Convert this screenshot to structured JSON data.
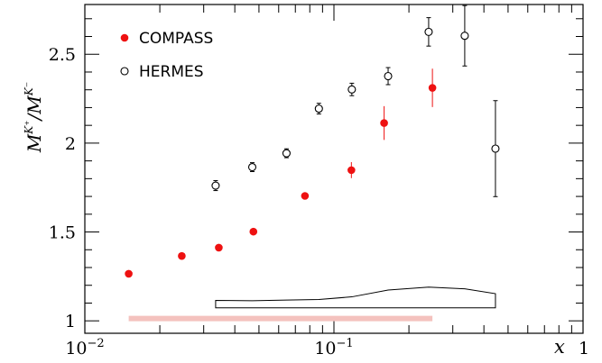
{
  "chart_data": {
    "type": "scatter",
    "x_scale": "log",
    "xlim": [
      0.01,
      1
    ],
    "ylim": [
      0.93,
      2.78
    ],
    "xlabel": "x",
    "ylabel": {
      "main": "M",
      "sup_plus": "K⁺",
      "slash": "/",
      "sup_minus": "K⁻"
    },
    "x_ticks": [
      {
        "value": 0.01,
        "base": "10",
        "exp": "−2"
      },
      {
        "value": 0.1,
        "base": "10",
        "exp": "−1"
      },
      {
        "value": 1,
        "base": "1",
        "exp": ""
      }
    ],
    "y_ticks": [
      {
        "value": 1,
        "label": "1"
      },
      {
        "value": 1.5,
        "label": "1.5"
      },
      {
        "value": 2,
        "label": "2"
      },
      {
        "value": 2.5,
        "label": "2.5"
      }
    ],
    "legend": {
      "position": "top-left"
    },
    "series": [
      {
        "name": "COMPASS",
        "marker": "filled-circle",
        "color": "#ee1111",
        "x": [
          0.015,
          0.0245,
          0.0345,
          0.0475,
          0.0765,
          0.1175,
          0.159,
          0.2485
        ],
        "y": [
          1.265,
          1.365,
          1.412,
          1.502,
          1.703,
          1.848,
          2.113,
          2.311
        ],
        "err": [
          0.012,
          0.012,
          0.012,
          0.014,
          0.018,
          0.045,
          0.095,
          0.108
        ]
      },
      {
        "name": "HERMES",
        "marker": "open-circle",
        "color": "#000000",
        "x": [
          0.0335,
          0.047,
          0.0645,
          0.087,
          0.118,
          0.165,
          0.24,
          0.335,
          0.445
        ],
        "y": [
          1.761,
          1.865,
          1.943,
          2.194,
          2.302,
          2.377,
          2.626,
          2.604,
          1.969
        ],
        "err": [
          0.028,
          0.025,
          0.025,
          0.03,
          0.035,
          0.048,
          0.08,
          0.17,
          0.27
        ]
      }
    ],
    "systematic_bands": [
      {
        "for": "COMPASS",
        "type": "bar",
        "color": "#f4c2be",
        "x_range": [
          0.015,
          0.2485
        ],
        "y": 1.013
      },
      {
        "for": "HERMES",
        "type": "outline",
        "color": "#000000",
        "x_range": [
          0.0335,
          0.445
        ],
        "y_bottom": 1.073,
        "top": [
          [
            0.0335,
            1.115
          ],
          [
            0.047,
            1.113
          ],
          [
            0.0645,
            1.117
          ],
          [
            0.087,
            1.12
          ],
          [
            0.118,
            1.135
          ],
          [
            0.165,
            1.173
          ],
          [
            0.24,
            1.19
          ],
          [
            0.335,
            1.18
          ],
          [
            0.445,
            1.153
          ]
        ]
      }
    ]
  }
}
